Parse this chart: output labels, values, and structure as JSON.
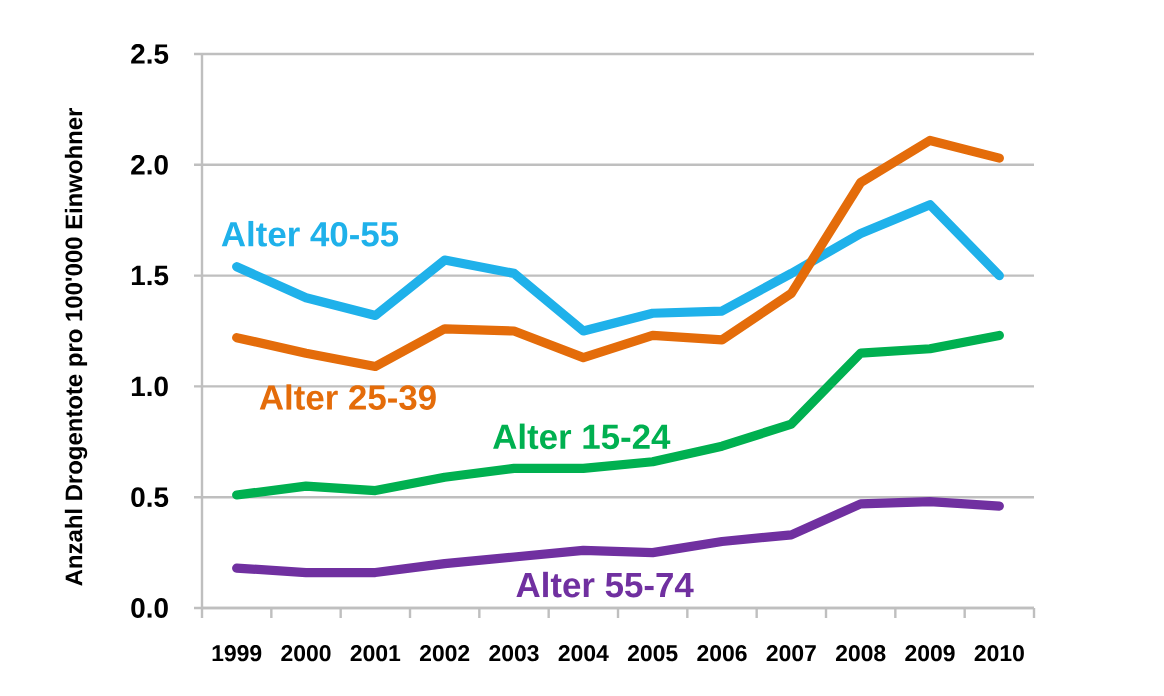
{
  "chart_data": {
    "type": "line",
    "ylabel": "Anzahl Drogentote pro 100'000 Einwohner",
    "categories": [
      "1999",
      "2000",
      "2001",
      "2002",
      "2003",
      "2004",
      "2005",
      "2006",
      "2007",
      "2008",
      "2009",
      "2010"
    ],
    "series": [
      {
        "name": "Alter 40-55",
        "color": "#1fb1ea",
        "values": [
          1.54,
          1.4,
          1.32,
          1.57,
          1.51,
          1.25,
          1.33,
          1.34,
          1.51,
          1.69,
          1.82,
          1.5
        ]
      },
      {
        "name": "Alter 25-39",
        "color": "#e46c0a",
        "values": [
          1.22,
          1.15,
          1.09,
          1.26,
          1.25,
          1.13,
          1.23,
          1.21,
          1.42,
          1.92,
          2.11,
          2.03
        ]
      },
      {
        "name": "Alter 15-24",
        "color": "#00b050",
        "values": [
          0.51,
          0.55,
          0.53,
          0.59,
          0.63,
          0.63,
          0.66,
          0.73,
          0.83,
          1.15,
          1.17,
          1.23
        ]
      },
      {
        "name": "Alter 55-74",
        "color": "#7030a0",
        "values": [
          0.18,
          0.16,
          0.16,
          0.2,
          0.23,
          0.26,
          0.25,
          0.3,
          0.33,
          0.47,
          0.48,
          0.46
        ]
      }
    ],
    "ylim": [
      0,
      2.5
    ],
    "yticks": [
      {
        "value": 0,
        "label": "0.0"
      },
      0.5,
      {
        "value": 1,
        "label": "1.0"
      },
      1.5,
      {
        "value": 2,
        "label": "2.0"
      },
      2.5
    ],
    "grid": "y",
    "marker": "none",
    "line_style": "solid"
  }
}
